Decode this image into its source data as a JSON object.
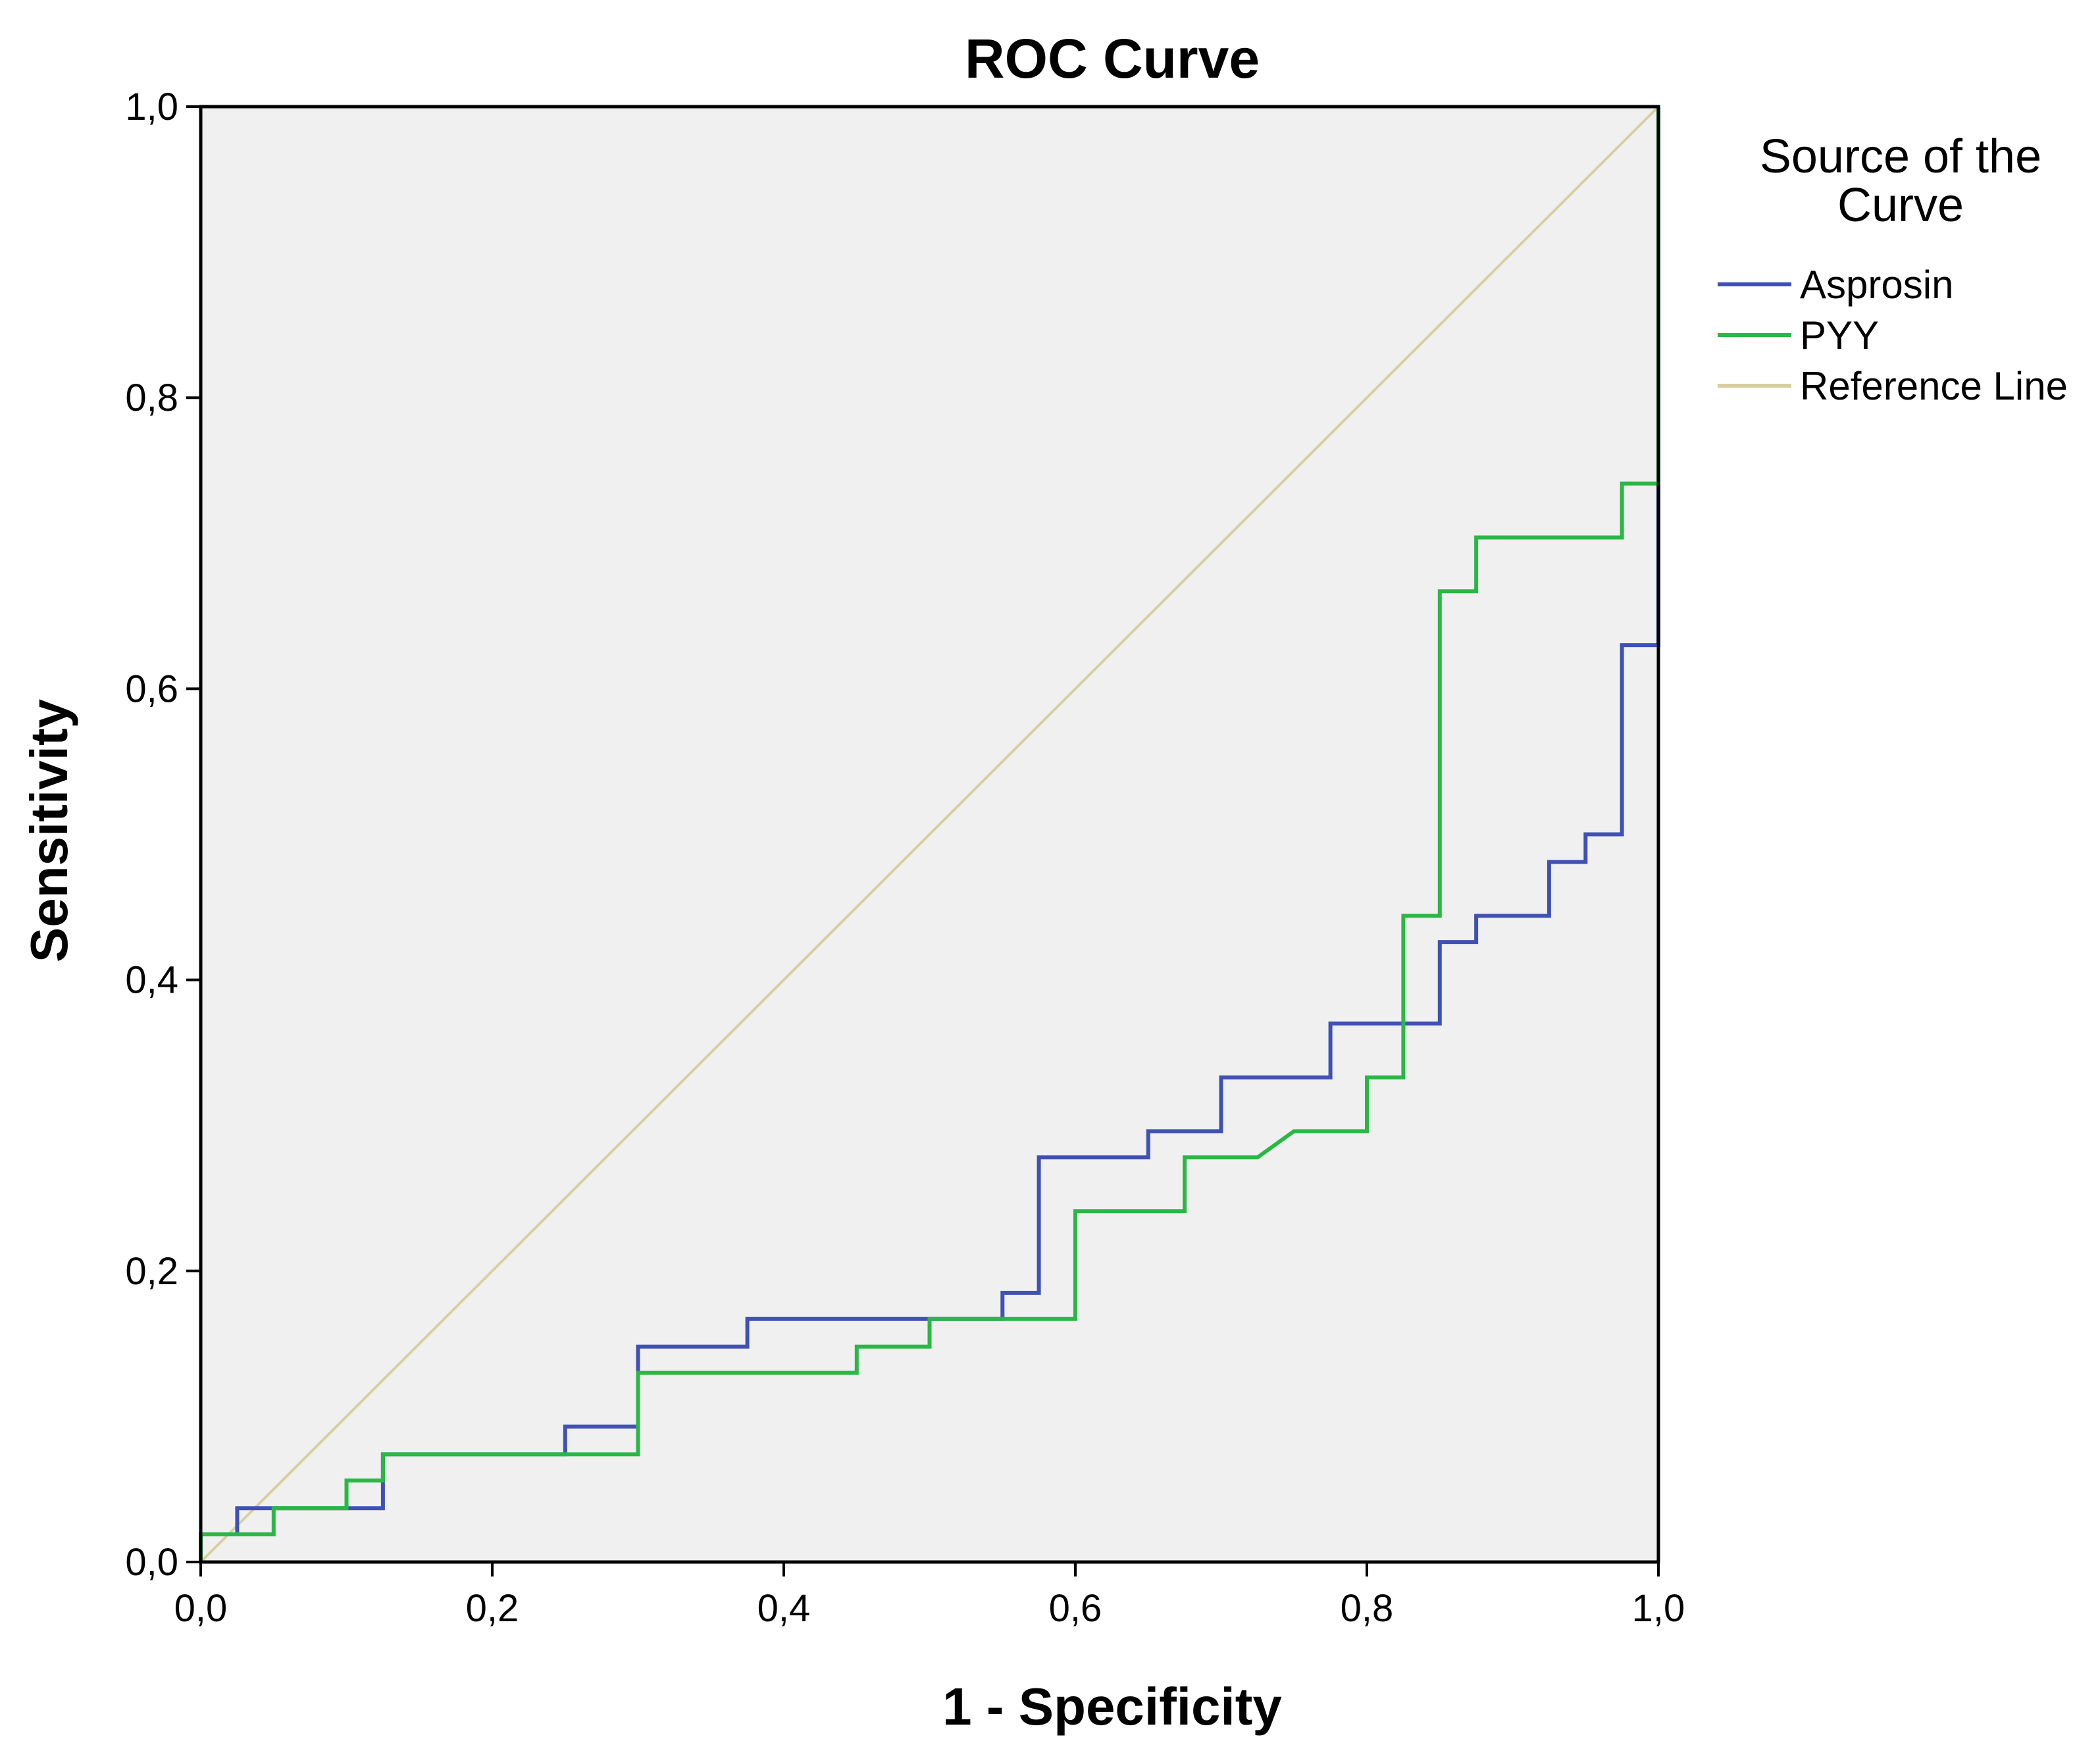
{
  "chart_data": {
    "type": "line",
    "title": "ROC Curve",
    "xlabel": "1 - Specificity",
    "ylabel": "Sensitivity",
    "xlim": [
      0,
      1
    ],
    "ylim": [
      0,
      1
    ],
    "x_ticks": [
      "0,0",
      "0,2",
      "0,4",
      "0,6",
      "0,8",
      "1,0"
    ],
    "y_ticks": [
      "0,0",
      "0,2",
      "0,4",
      "0,6",
      "0,8",
      "1,0"
    ],
    "grid": false,
    "legend_title": "Source of the Curve",
    "legend_position": "right",
    "series": [
      {
        "name": "Asprosin",
        "color": "#3f51b5",
        "points": [
          [
            0,
            0
          ],
          [
            0,
            0.019
          ],
          [
            0.025,
            0.019
          ],
          [
            0.025,
            0.037
          ],
          [
            0.125,
            0.037
          ],
          [
            0.125,
            0.074
          ],
          [
            0.25,
            0.074
          ],
          [
            0.25,
            0.093
          ],
          [
            0.3,
            0.093
          ],
          [
            0.3,
            0.148
          ],
          [
            0.375,
            0.148
          ],
          [
            0.375,
            0.167
          ],
          [
            0.55,
            0.167
          ],
          [
            0.55,
            0.185
          ],
          [
            0.575,
            0.185
          ],
          [
            0.575,
            0.278
          ],
          [
            0.65,
            0.278
          ],
          [
            0.65,
            0.296
          ],
          [
            0.7,
            0.296
          ],
          [
            0.7,
            0.333
          ],
          [
            0.775,
            0.333
          ],
          [
            0.775,
            0.37
          ],
          [
            0.85,
            0.37
          ],
          [
            0.85,
            0.426
          ],
          [
            0.875,
            0.426
          ],
          [
            0.875,
            0.444
          ],
          [
            0.925,
            0.444
          ],
          [
            0.925,
            0.481
          ],
          [
            0.95,
            0.481
          ],
          [
            0.95,
            0.5
          ],
          [
            0.975,
            0.5
          ],
          [
            0.975,
            0.63
          ],
          [
            1.0,
            0.63
          ],
          [
            1.0,
            1.0
          ]
        ]
      },
      {
        "name": "PYY",
        "color": "#2ab845",
        "points": [
          [
            0,
            0
          ],
          [
            0,
            0.019
          ],
          [
            0.05,
            0.019
          ],
          [
            0.05,
            0.037
          ],
          [
            0.1,
            0.037
          ],
          [
            0.1,
            0.056
          ],
          [
            0.125,
            0.056
          ],
          [
            0.125,
            0.074
          ],
          [
            0.3,
            0.074
          ],
          [
            0.3,
            0.13
          ],
          [
            0.45,
            0.13
          ],
          [
            0.45,
            0.148
          ],
          [
            0.5,
            0.148
          ],
          [
            0.5,
            0.167
          ],
          [
            0.6,
            0.167
          ],
          [
            0.6,
            0.241
          ],
          [
            0.675,
            0.241
          ],
          [
            0.675,
            0.278
          ],
          [
            0.725,
            0.278
          ],
          [
            0.75,
            0.296
          ],
          [
            0.8,
            0.296
          ],
          [
            0.8,
            0.333
          ],
          [
            0.825,
            0.333
          ],
          [
            0.825,
            0.444
          ],
          [
            0.85,
            0.444
          ],
          [
            0.85,
            0.667
          ],
          [
            0.875,
            0.667
          ],
          [
            0.875,
            0.704
          ],
          [
            0.975,
            0.704
          ],
          [
            0.975,
            0.741
          ],
          [
            1.0,
            0.741
          ],
          [
            1.0,
            1.0
          ]
        ]
      },
      {
        "name": "Reference Line",
        "color": "#d8cfa0",
        "points": [
          [
            0,
            0
          ],
          [
            1,
            1
          ]
        ]
      }
    ]
  }
}
